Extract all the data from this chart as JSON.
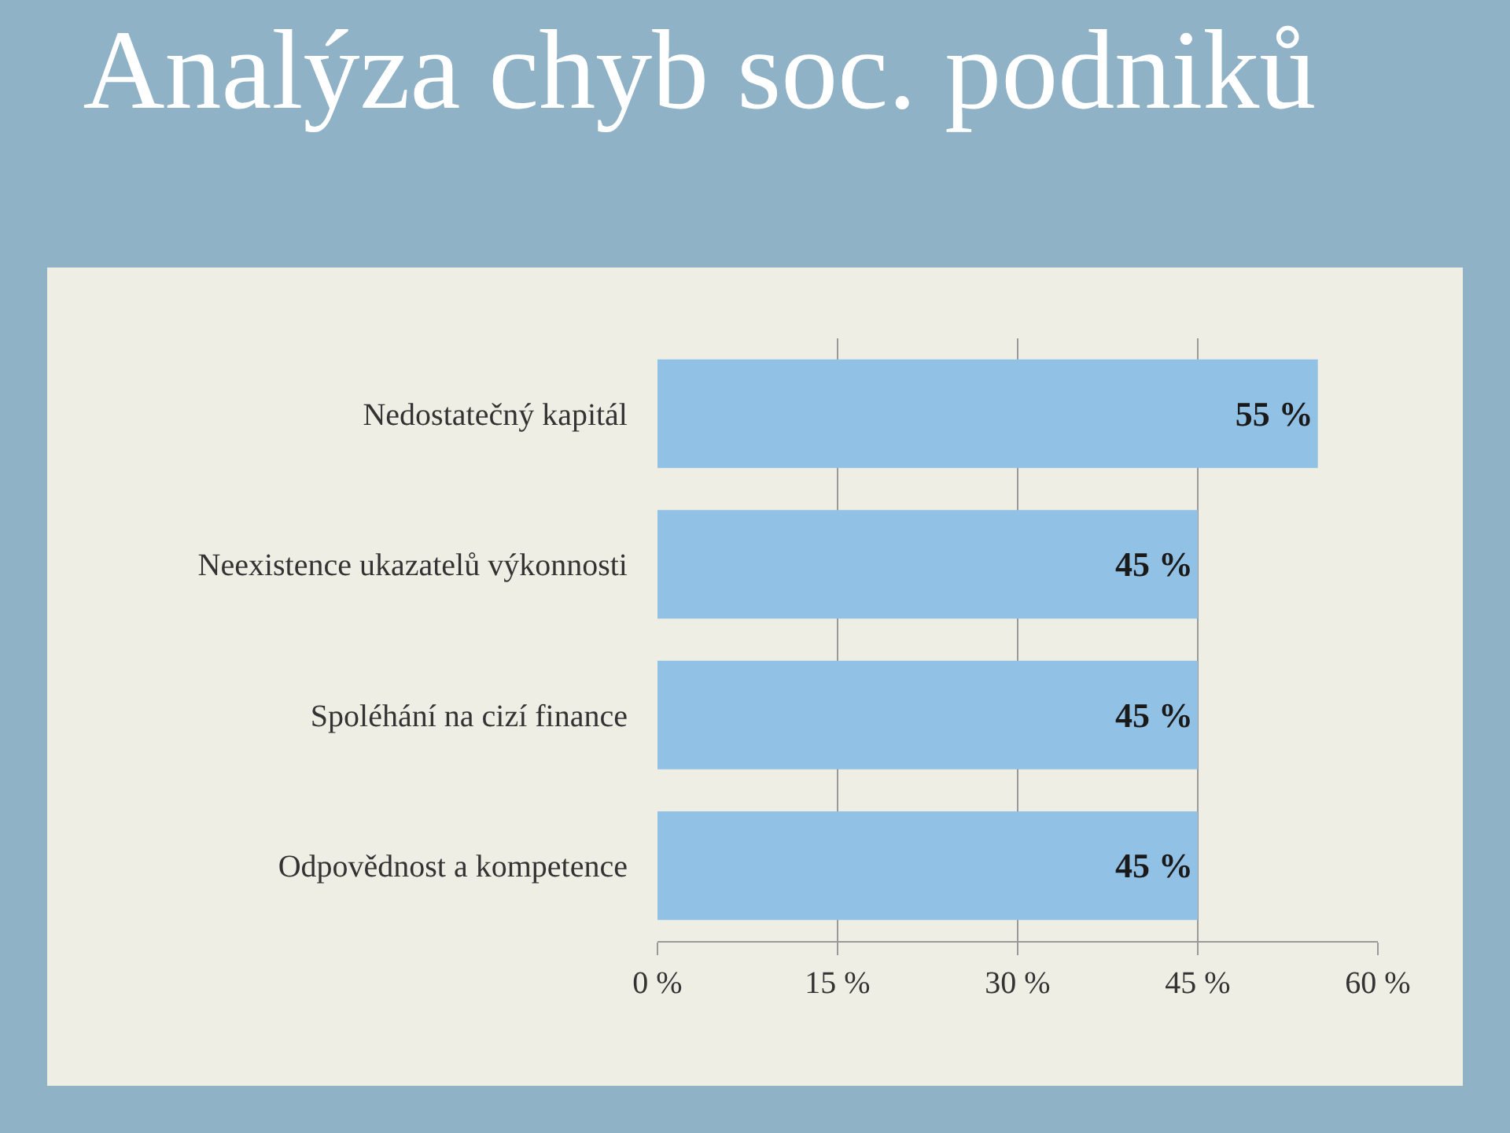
{
  "chart_data": {
    "type": "bar",
    "orientation": "horizontal",
    "title": "Analýza chyb soc. podniků",
    "categories": [
      "Nedostatečný kapitál",
      "Neexistence ukazatelů výkonnosti",
      "Spoléhání na cizí finance",
      "Odpovědnost a kompetence"
    ],
    "values": [
      55,
      45,
      45,
      45
    ],
    "color": "#92c1e6",
    "value_labels": [
      "55 %",
      "45 %",
      "45 %",
      "45 %"
    ],
    "xlim": [
      0,
      60
    ],
    "xticks": [
      {
        "value": 0,
        "label": "0 %"
      },
      {
        "value": 15,
        "label": "15 %"
      },
      {
        "value": 30,
        "label": "30 %"
      },
      {
        "value": 45,
        "label": "45 %"
      },
      {
        "value": 60,
        "label": "60 %"
      }
    ],
    "grid": "x",
    "legend": false
  }
}
